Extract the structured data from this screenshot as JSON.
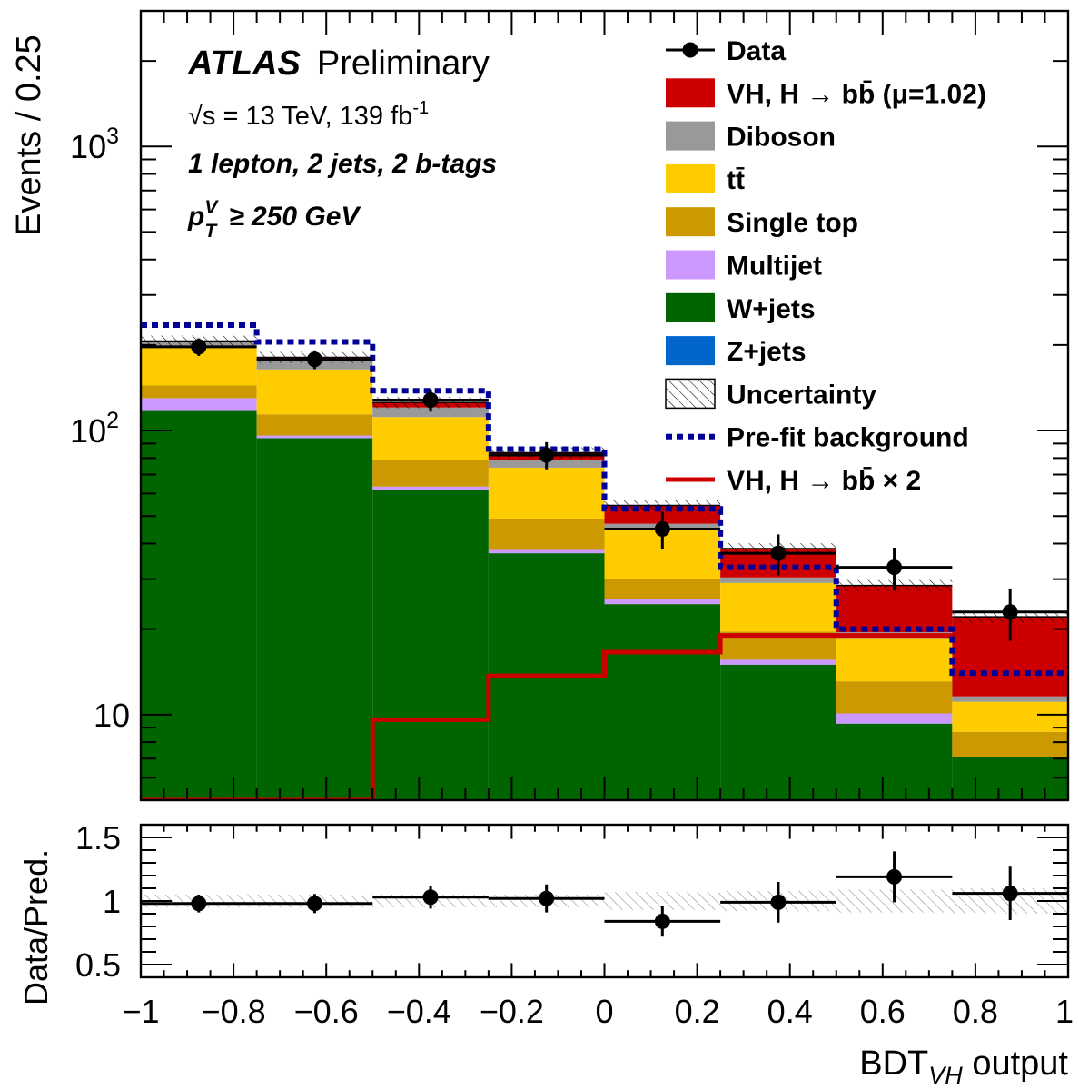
{
  "chart_data": {
    "type": "bar",
    "experiment": "ATLAS",
    "status": "Preliminary",
    "energy_text": "√s = 13 TeV, 139 fb",
    "energy_sup": "-1",
    "region": "1 lepton, 2 jets, 2 b-tags",
    "ptv_cut": "≥ 250 GeV",
    "xlabel": "BDT",
    "xlabel_sub": "VH",
    "xlabel_suffix": " output",
    "ylabel": "Events / 0.25",
    "ratio_ylabel": "Data/Pred.",
    "xlim": [
      -1,
      1
    ],
    "ylim": [
      5,
      3000
    ],
    "ratio_ylim": [
      0.4,
      1.6
    ],
    "yscale": "log",
    "bin_edges": [
      -1,
      -0.75,
      -0.5,
      -0.25,
      0,
      0.25,
      0.5,
      0.75,
      1
    ],
    "x_ticks": [
      {
        "v": -1,
        "label": "−1"
      },
      {
        "v": -0.8,
        "label": "−0.8"
      },
      {
        "v": -0.6,
        "label": "−0.6"
      },
      {
        "v": -0.4,
        "label": "−0.4"
      },
      {
        "v": -0.2,
        "label": "−0.2"
      },
      {
        "v": 0,
        "label": "0"
      },
      {
        "v": 0.2,
        "label": "0.2"
      },
      {
        "v": 0.4,
        "label": "0.4"
      },
      {
        "v": 0.6,
        "label": "0.6"
      },
      {
        "v": 0.8,
        "label": "0.8"
      },
      {
        "v": 1,
        "label": "1"
      }
    ],
    "y_ticks": [
      {
        "v": 10,
        "label": "10",
        "sup": ""
      },
      {
        "v": 100,
        "label": "10",
        "sup": "2"
      },
      {
        "v": 1000,
        "label": "10",
        "sup": "3"
      }
    ],
    "ratio_ticks": [
      {
        "v": 0.5,
        "label": "0.5"
      },
      {
        "v": 1,
        "label": "1"
      },
      {
        "v": 1.5,
        "label": "1.5"
      }
    ],
    "stack": [
      {
        "name": "W+jets",
        "color": "#006400",
        "values": [
          118,
          94,
          62,
          37,
          24.5,
          15,
          9.3,
          7.1
        ]
      },
      {
        "name": "Multijet",
        "color": "#cc99ff",
        "values": [
          12,
          2,
          1.5,
          1,
          1,
          0.6,
          0.8,
          0
        ]
      },
      {
        "name": "Single top",
        "color": "#cc9900",
        "values": [
          14,
          18,
          15,
          11,
          4.5,
          4,
          3,
          1.6
        ]
      },
      {
        "name": "tt̄",
        "color": "#ffcc00",
        "values": [
          54,
          50,
          33,
          25,
          15,
          9.5,
          5.5,
          2.4
        ]
      },
      {
        "name": "Diboson",
        "color": "#999999",
        "values": [
          7,
          13,
          9,
          5,
          2,
          1.3,
          0.9,
          0.5
        ]
      },
      {
        "name": "VH, H → bb̄ (μ=1.02)",
        "color": "#cc0000",
        "values": [
          1.5,
          4,
          5,
          4.5,
          7.5,
          8,
          9,
          10.5
        ]
      }
    ],
    "legend": [
      {
        "label": "Data",
        "kind": "data"
      },
      {
        "label": "VH, H → bb̄ (μ=1.02)",
        "kind": "box",
        "color": "#cc0000"
      },
      {
        "label": "Diboson",
        "kind": "box",
        "color": "#999999"
      },
      {
        "label": "tt̄",
        "kind": "box",
        "color": "#ffcc00"
      },
      {
        "label": "Single top",
        "kind": "box",
        "color": "#cc9900"
      },
      {
        "label": "Multijet",
        "kind": "box",
        "color": "#cc99ff"
      },
      {
        "label": "W+jets",
        "kind": "box",
        "color": "#006400"
      },
      {
        "label": "Z+jets",
        "kind": "box",
        "color": "#0066cc"
      },
      {
        "label": "Uncertainty",
        "kind": "hatch"
      },
      {
        "label": "Pre-fit background",
        "kind": "dash",
        "color": "#000099"
      },
      {
        "label": "VH, H → bb̄ × 2",
        "kind": "line",
        "color": "#cc0000"
      }
    ],
    "data": {
      "x": [
        -0.875,
        -0.625,
        -0.375,
        -0.125,
        0.125,
        0.375,
        0.625,
        0.875
      ],
      "y": [
        197,
        178,
        128,
        82,
        45,
        37,
        33,
        23
      ],
      "err": [
        14,
        13.5,
        11.5,
        9,
        6.7,
        6.1,
        5.7,
        4.8
      ]
    },
    "prefit_background": {
      "name": "Pre-fit background",
      "values": [
        235,
        205,
        138,
        86,
        53,
        33,
        20,
        14
      ]
    },
    "signal_x2": {
      "name": "VH, H → bb̄ × 2",
      "values": [
        5,
        5,
        9.6,
        13.7,
        16.6,
        19,
        19,
        19
      ]
    },
    "ratio": {
      "x": [
        -0.875,
        -0.625,
        -0.375,
        -0.125,
        0.125,
        0.375,
        0.625,
        0.875
      ],
      "y": [
        0.98,
        0.98,
        1.03,
        1.02,
        0.84,
        0.99,
        1.19,
        1.06
      ],
      "err": [
        0.07,
        0.075,
        0.09,
        0.11,
        0.12,
        0.16,
        0.2,
        0.21
      ],
      "band": [
        0.05,
        0.05,
        0.05,
        0.05,
        0.07,
        0.08,
        0.09,
        0.1
      ]
    }
  }
}
